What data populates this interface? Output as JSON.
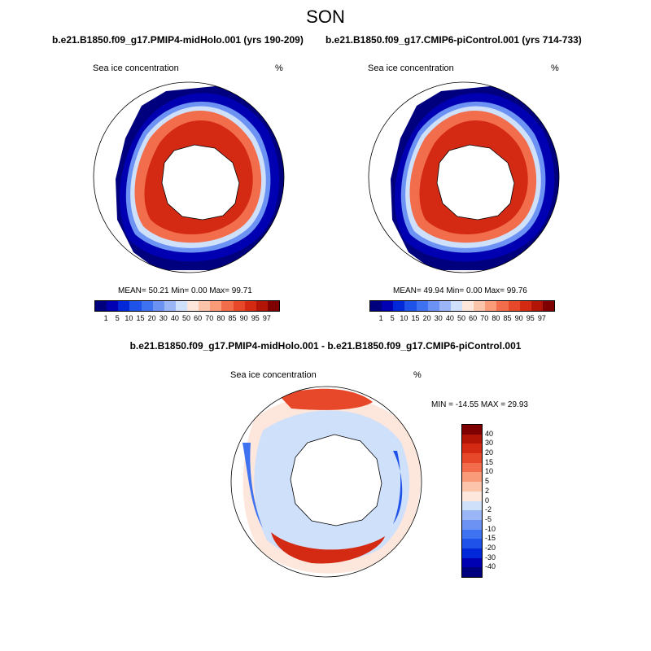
{
  "title": "SON",
  "panels": [
    {
      "case": "b.e21.B1850.f09_g17.PMIP4-midHolo.001 (yrs 190-209)",
      "label": "Sea ice concentration",
      "units": "%",
      "stats": "MEAN=  50.21  Min=   0.00  Max=  99.71"
    },
    {
      "case": "b.e21.B1850.f09_g17.CMIP6-piControl.001 (yrs 714-733)",
      "label": "Sea ice concentration",
      "units": "%",
      "stats": "MEAN=  49.94  Min=   0.00  Max=  99.76"
    }
  ],
  "diff": {
    "title": "b.e21.B1850.f09_g17.PMIP4-midHolo.001 - b.e21.B1850.f09_g17.CMIP6-piControl.001",
    "label": "Sea ice concentration",
    "units": "%",
    "stats": "MIN = -14.55 MAX =  29.93"
  },
  "colorbar_abs": {
    "labels": [
      "1",
      "5",
      "10",
      "15",
      "20",
      "30",
      "40",
      "50",
      "60",
      "70",
      "80",
      "85",
      "90",
      "95",
      "97"
    ],
    "colors": [
      "#00007f",
      "#0000b2",
      "#0028d8",
      "#1f52e8",
      "#3f72f0",
      "#6c93f3",
      "#9bb6f6",
      "#cfe0fb",
      "#fde6dc",
      "#fcc5ab",
      "#f99a78",
      "#f26d4b",
      "#e8482a",
      "#d42a14",
      "#b21406",
      "#7f0000"
    ]
  },
  "colorbar_diff": {
    "labels": [
      "40",
      "30",
      "20",
      "15",
      "10",
      "5",
      "2",
      "0",
      "-2",
      "-5",
      "-10",
      "-15",
      "-20",
      "-30",
      "-40"
    ],
    "colors": [
      "#7f0000",
      "#b21406",
      "#d42a14",
      "#e8482a",
      "#f26d4b",
      "#f99a78",
      "#fcc5ab",
      "#fde6dc",
      "#cfe0fb",
      "#9bb6f6",
      "#6c93f3",
      "#3f72f0",
      "#1f52e8",
      "#0028d8",
      "#0000b2",
      "#00007f"
    ]
  }
}
